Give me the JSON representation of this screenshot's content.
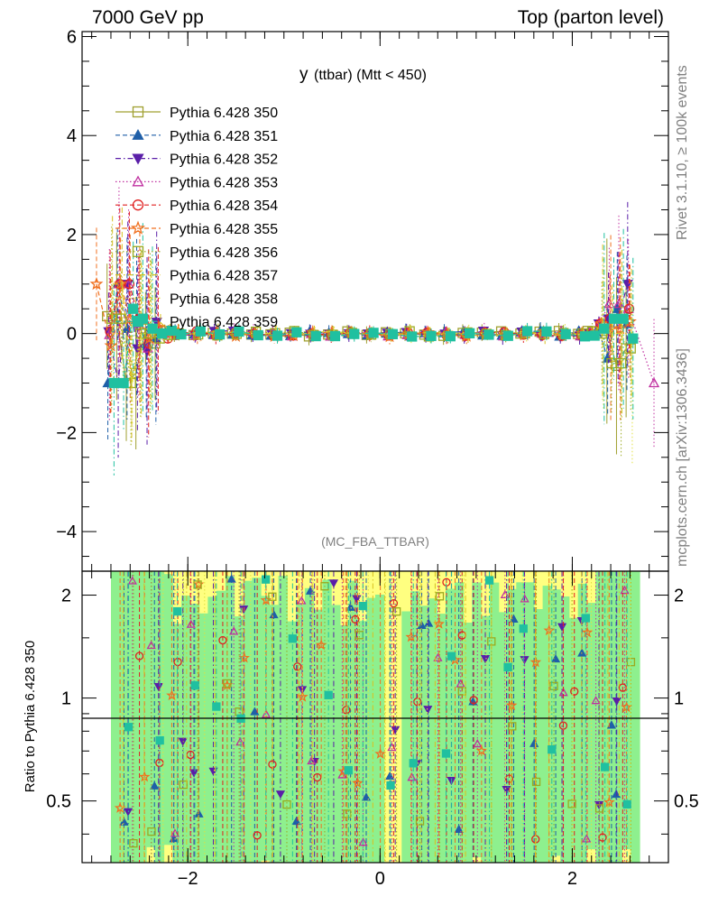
{
  "header": {
    "energy": "7000 GeV pp",
    "process": "Top (parton level)"
  },
  "side_labels": {
    "rivet": "Rivet 3.1.10, ≥ 100k events",
    "mcplots": "mcplots.cern.ch [arXiv:1306.3436]"
  },
  "plot_title_main": "y",
  "plot_title_sub": "(ttbar) (Mtt < 450)",
  "analysis_tag": "(MC_FBA_TTBAR)",
  "ratio_ylabel": "Ratio to Pythia 6.428 350",
  "colors": {
    "band_green": "#8ef08e",
    "band_yellow": "#ffff80",
    "axis": "#000000",
    "grey_text": "#808080"
  },
  "chart_data": [
    {
      "type": "scatter",
      "panel": "main",
      "title": "y (ttbar) (Mtt < 450)",
      "xlim": [
        -3.1,
        3.0
      ],
      "ylim": [
        -4.8,
        6.1
      ],
      "yticks": [
        "−4",
        "−2",
        "0",
        "2",
        "4",
        "6"
      ],
      "grid": false,
      "legend_position": "top-left",
      "series": [
        {
          "name": "Pythia 6.428 350",
          "color": "#a0a030",
          "marker": "square-open",
          "dash": "solid",
          "x": [
            -2.75,
            -2.65,
            -2.55,
            -2.45,
            -2.35,
            -2.25,
            -1.5,
            0.0,
            1.5,
            2.35,
            2.45,
            2.55,
            2.65
          ],
          "y": [
            0.35,
            -1.0,
            -0.8,
            0.1,
            -0.2,
            0.05,
            0.0,
            0.0,
            0.0,
            0.05,
            -0.65,
            -0.3,
            1.0
          ]
        },
        {
          "name": "Pythia 6.428 351",
          "color": "#1f5fa8",
          "marker": "triangle-up",
          "dash": "dash",
          "x": [
            -2.8,
            -2.7,
            -2.6,
            -2.5,
            -2.4,
            -2.2,
            0.0,
            2.3,
            2.4,
            2.5
          ],
          "y": [
            -1.0,
            1.0,
            0.1,
            0.3,
            -0.2,
            0.0,
            0.0,
            0.1,
            -0.5,
            0.5
          ]
        },
        {
          "name": "Pythia 6.428 352",
          "color": "#5a1ea8",
          "marker": "triangle-down",
          "dash": "dashdot",
          "x": [
            -2.7,
            -2.6,
            -2.5,
            -2.4,
            -2.2,
            0.0,
            2.3,
            2.45,
            2.55
          ],
          "y": [
            -1.0,
            1.0,
            -0.3,
            -0.35,
            0.0,
            0.0,
            0.2,
            0.3,
            1.0
          ]
        },
        {
          "name": "Pythia 6.428 353",
          "color": "#c030a0",
          "marker": "triangle-open",
          "dash": "dot",
          "x": [
            -2.7,
            -2.6,
            -2.5,
            -2.4,
            -2.2,
            0.0,
            2.3,
            2.45,
            2.55,
            2.85
          ],
          "y": [
            1.0,
            1.0,
            0.2,
            -0.3,
            0.0,
            0.0,
            0.2,
            0.6,
            0.5,
            -1.0
          ]
        },
        {
          "name": "Pythia 6.428 354",
          "color": "#e02020",
          "marker": "circle-open",
          "dash": "dash",
          "x": [
            -2.7,
            -2.6,
            -2.5,
            -2.4,
            -2.2,
            0.0,
            2.3,
            2.45,
            2.55
          ],
          "y": [
            1.0,
            1.0,
            0.3,
            -0.2,
            -0.1,
            0.0,
            0.2,
            0.3,
            0.5
          ]
        },
        {
          "name": "Pythia 6.428 355",
          "color": "#f07020",
          "marker": "star-open",
          "dash": "dash",
          "x": [
            -2.95,
            -2.7,
            -2.6,
            -2.5,
            -2.4,
            -2.2,
            0.0,
            2.3,
            2.45
          ],
          "y": [
            1.0,
            1.0,
            0.3,
            0.3,
            -0.1,
            0.0,
            0.0,
            0.2,
            0.1
          ]
        },
        {
          "name": "Pythia 6.428 356",
          "color": "#9aaa20",
          "marker": "square-open",
          "dash": "dot",
          "x": [
            -2.75,
            -2.65,
            -2.55,
            -2.45,
            -2.3,
            0.0,
            2.3,
            2.45,
            2.55
          ],
          "y": [
            0.3,
            -1.0,
            0.0,
            0.0,
            -0.1,
            0.0,
            0.0,
            -0.6,
            -0.3
          ]
        },
        {
          "name": "Pythia 6.428 357",
          "color": "#d8c020",
          "marker": "none",
          "dash": "dashdot",
          "x": [
            -2.75,
            -2.65,
            -2.55,
            -2.45,
            0.0,
            2.45,
            2.55,
            2.65
          ],
          "y": [
            1.0,
            -1.0,
            0.0,
            0.0,
            0.0,
            0.0,
            0.0,
            1.0
          ]
        },
        {
          "name": "Pythia 6.428 358",
          "color": "#e0e040",
          "marker": "none",
          "dash": "dot",
          "x": [
            -2.75,
            -2.65,
            -2.55,
            0.0,
            2.45,
            2.55,
            2.65
          ],
          "y": [
            0.0,
            -1.0,
            0.0,
            0.0,
            0.0,
            -1.0,
            0.0
          ]
        },
        {
          "name": "Pythia 6.428 359",
          "color": "#20c0a0",
          "marker": "square",
          "dash": "dashdot",
          "x": [
            -2.75,
            -2.65,
            -2.55,
            -2.45,
            -2.35,
            0.0,
            2.3,
            2.45
          ],
          "y": [
            -1.0,
            0.5,
            0.3,
            0.1,
            0.0,
            0.0,
            0.1,
            0.3
          ]
        }
      ]
    },
    {
      "type": "scatter",
      "panel": "ratio",
      "ylabel": "Ratio to Pythia 6.428 350",
      "xlim": [
        -3.1,
        3.0
      ],
      "ylim": [
        0.33,
        2.35
      ],
      "xticks": [
        "−2",
        "0",
        "2"
      ],
      "yticks": [
        "0.5",
        "1",
        "2"
      ],
      "reference_line": 1.0,
      "band_x_range": [
        -2.8,
        2.7
      ]
    }
  ]
}
